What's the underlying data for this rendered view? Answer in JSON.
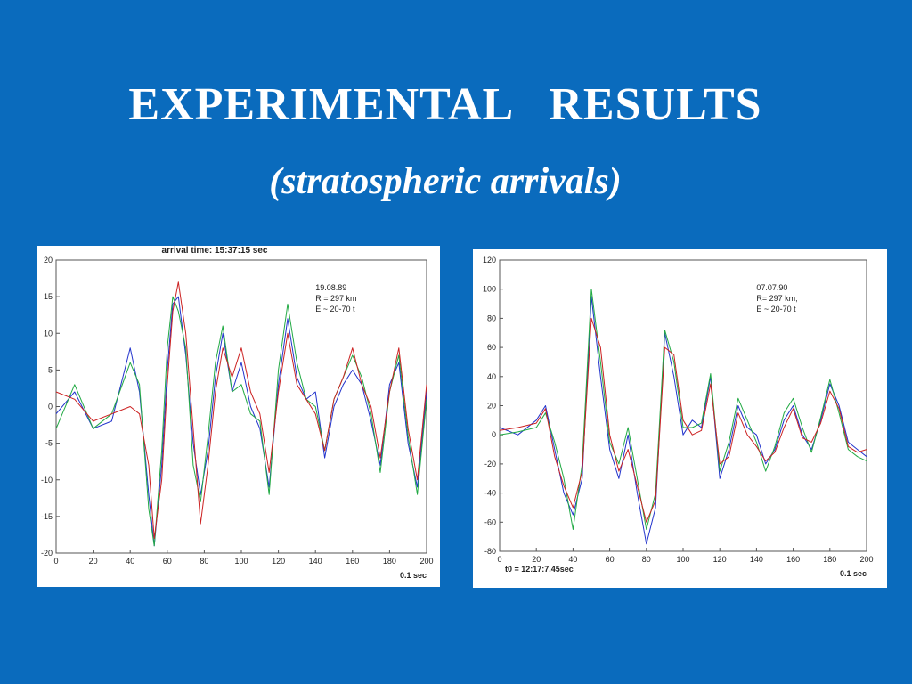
{
  "slide": {
    "title": "EXPERIMENTAL   RESULTS",
    "subtitle": "(stratospheric arrivals)",
    "background": "#0a6bbd",
    "text_color": "#ffffff"
  },
  "chart_data": [
    {
      "type": "line",
      "title": "arrival time: 15:37:15 sec",
      "annotation": [
        "19.08.89",
        "R = 297 km",
        "E  ~ 20-70 t"
      ],
      "xlabel": "0.1 sec",
      "ylabel": "",
      "xlim": [
        0,
        200
      ],
      "ylim": [
        -20,
        20
      ],
      "xticks": [
        "0",
        "20",
        "40",
        "60",
        "80",
        "100",
        "120",
        "140",
        "160",
        "180",
        "200"
      ],
      "yticks": [
        "20",
        "15",
        "10",
        "5",
        "0",
        "-5",
        "-10",
        "-15",
        "-20"
      ],
      "grid": false,
      "x": [
        0,
        10,
        20,
        30,
        40,
        45,
        50,
        53,
        57,
        60,
        63,
        66,
        70,
        74,
        78,
        82,
        86,
        90,
        95,
        100,
        105,
        110,
        115,
        120,
        125,
        130,
        135,
        140,
        145,
        150,
        155,
        160,
        165,
        170,
        175,
        180,
        185,
        190,
        195,
        200
      ],
      "series": [
        {
          "color": "#2233cc",
          "values": [
            -1,
            2,
            -3,
            -2,
            8,
            2,
            -12,
            -19,
            -8,
            5,
            14,
            15,
            7,
            -5,
            -12,
            -6,
            4,
            10,
            2,
            6,
            0,
            -3,
            -11,
            3,
            12,
            4,
            1,
            2,
            -7,
            0,
            3,
            5,
            3,
            -2,
            -8,
            3,
            6,
            -5,
            -11,
            2
          ]
        },
        {
          "color": "#22aa44",
          "values": [
            -3,
            3,
            -3,
            -1,
            6,
            3,
            -14,
            -19,
            -6,
            8,
            15,
            13,
            8,
            -8,
            -13,
            -4,
            6,
            11,
            2,
            3,
            -1,
            -2,
            -12,
            5,
            14,
            6,
            1,
            0,
            -6,
            1,
            4,
            7,
            4,
            -1,
            -9,
            2,
            7,
            -4,
            -12,
            1
          ]
        },
        {
          "color": "#cc2222",
          "values": [
            2,
            1,
            -2,
            -1,
            0,
            -1,
            -8,
            -18,
            -10,
            3,
            13,
            17,
            10,
            -3,
            -16,
            -8,
            2,
            8,
            4,
            8,
            2,
            -1,
            -9,
            2,
            10,
            3,
            1,
            -1,
            -6,
            1,
            4,
            8,
            3,
            0,
            -7,
            2,
            8,
            -3,
            -10,
            3
          ]
        }
      ]
    },
    {
      "type": "line",
      "title": "",
      "annotation": [
        "07.07.90",
        "R= 297 km;",
        "E  ~  20-70 t"
      ],
      "xlabel": "0.1 sec",
      "ylabel": "",
      "x_caption": "t0  =  12:17:7.45sec",
      "xlim": [
        0,
        200
      ],
      "ylim": [
        -80,
        120
      ],
      "xticks": [
        "0",
        "20",
        "40",
        "60",
        "80",
        "100",
        "120",
        "140",
        "160",
        "180",
        "200"
      ],
      "yticks": [
        "120",
        "100",
        "80",
        "60",
        "40",
        "20",
        "0",
        "-20",
        "-40",
        "-60",
        "-80"
      ],
      "grid": false,
      "x": [
        0,
        10,
        20,
        25,
        30,
        35,
        40,
        45,
        50,
        55,
        60,
        65,
        70,
        75,
        80,
        85,
        90,
        95,
        100,
        105,
        110,
        115,
        120,
        125,
        130,
        135,
        140,
        145,
        150,
        155,
        160,
        165,
        170,
        175,
        180,
        185,
        190,
        195,
        200
      ],
      "series": [
        {
          "color": "#2233cc",
          "values": [
            5,
            0,
            10,
            20,
            -10,
            -40,
            -55,
            -30,
            95,
            40,
            -10,
            -30,
            0,
            -40,
            -75,
            -50,
            70,
            40,
            0,
            10,
            5,
            40,
            -30,
            -10,
            20,
            5,
            0,
            -20,
            -10,
            10,
            20,
            0,
            -10,
            10,
            35,
            20,
            -5,
            -10,
            -15
          ]
        },
        {
          "color": "#22aa44",
          "values": [
            0,
            2,
            5,
            15,
            -5,
            -30,
            -65,
            -20,
            100,
            50,
            -5,
            -20,
            5,
            -30,
            -65,
            -40,
            72,
            50,
            5,
            5,
            8,
            42,
            -25,
            -5,
            25,
            10,
            -5,
            -25,
            -8,
            15,
            25,
            5,
            -12,
            12,
            38,
            15,
            -10,
            -15,
            -18
          ]
        },
        {
          "color": "#cc2222",
          "values": [
            3,
            5,
            8,
            18,
            -15,
            -35,
            -50,
            -25,
            80,
            60,
            0,
            -25,
            -10,
            -35,
            -60,
            -45,
            60,
            55,
            10,
            0,
            3,
            35,
            -20,
            -15,
            15,
            0,
            -8,
            -18,
            -12,
            5,
            18,
            -2,
            -5,
            8,
            30,
            18,
            -8,
            -12,
            -10
          ]
        }
      ]
    }
  ]
}
